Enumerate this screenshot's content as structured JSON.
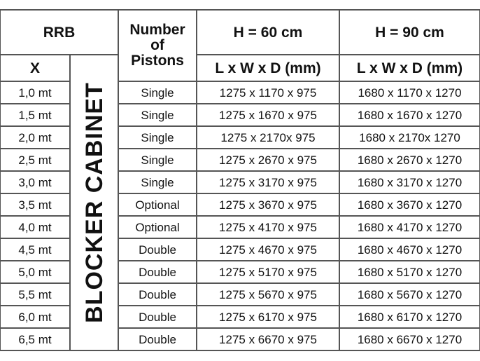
{
  "header": {
    "rrb": "RRB",
    "pistons": [
      "Number",
      "of",
      "Pistons"
    ],
    "h60": "H = 60 cm",
    "h90": "H = 90 cm",
    "x": "X",
    "dims60": "L x W x D (mm)",
    "dims90": "L x W x D (mm)",
    "blocker": "BLOCKER CABINET"
  },
  "rows": [
    {
      "x": "1,0 mt",
      "pistons": "Single",
      "h60": "1275 x 1170 x 975",
      "h90": "1680 x 1170 x 1270"
    },
    {
      "x": "1,5 mt",
      "pistons": "Single",
      "h60": "1275 x 1670 x 975",
      "h90": "1680 x 1670 x 1270"
    },
    {
      "x": "2,0 mt",
      "pistons": "Single",
      "h60": "1275 x 2170x 975",
      "h90": "1680 x 2170x 1270"
    },
    {
      "x": "2,5 mt",
      "pistons": "Single",
      "h60": "1275 x 2670 x 975",
      "h90": "1680 x 2670 x 1270"
    },
    {
      "x": "3,0 mt",
      "pistons": "Single",
      "h60": "1275 x 3170 x 975",
      "h90": "1680 x 3170 x 1270"
    },
    {
      "x": "3,5 mt",
      "pistons": "Optional",
      "h60": "1275 x 3670 x 975",
      "h90": "1680 x 3670 x 1270"
    },
    {
      "x": "4,0 mt",
      "pistons": "Optional",
      "h60": "1275 x 4170 x 975",
      "h90": "1680 x 4170 x 1270"
    },
    {
      "x": "4,5 mt",
      "pistons": "Double",
      "h60": "1275 x 4670 x 975",
      "h90": "1680 x 4670 x 1270"
    },
    {
      "x": "5,0 mt",
      "pistons": "Double",
      "h60": "1275 x 5170 x 975",
      "h90": "1680 x 5170 x 1270"
    },
    {
      "x": "5,5 mt",
      "pistons": "Double",
      "h60": "1275 x 5670 x 975",
      "h90": "1680 x 5670 x 1270"
    },
    {
      "x": "6,0 mt",
      "pistons": "Double",
      "h60": "1275 x 6170 x 975",
      "h90": "1680 x 6170 x 1270"
    },
    {
      "x": "6,5 mt",
      "pistons": "Double",
      "h60": "1275 x 6670 x 975",
      "h90": "1680 x 6670 x 1270"
    }
  ]
}
